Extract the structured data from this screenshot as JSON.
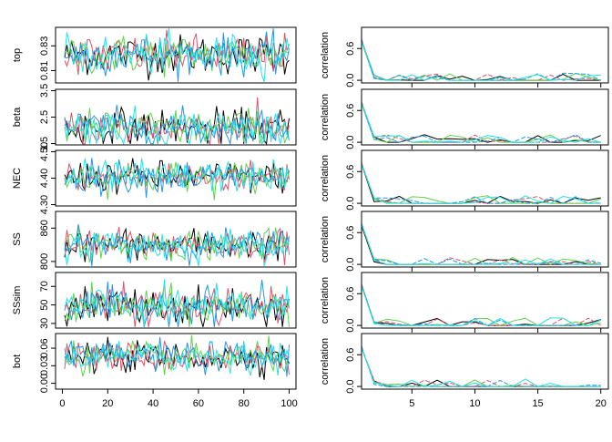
{
  "chart_data": {
    "type": "line",
    "parameters": [
      {
        "name": "top",
        "trace_ylim": [
          0.8,
          0.845
        ],
        "trace_yticks": [
          "0.81",
          "0.83"
        ],
        "trace_yticks_values": [
          0.81,
          0.83
        ],
        "trace_edge_ticks": [
          "0.81"
        ],
        "center": 0.823,
        "spread": 0.008
      },
      {
        "name": "beta",
        "trace_ylim": [
          1.45,
          3.55
        ],
        "trace_yticks": [
          "1.5",
          "2.5",
          "3.5"
        ],
        "trace_yticks_values": [
          1.5,
          2.5,
          3.5
        ],
        "center": 2.1,
        "spread": 0.35
      },
      {
        "name": "NEC",
        "trace_ylim": [
          4.295,
          4.505
        ],
        "trace_yticks": [
          "4.30",
          "4.40",
          "4.50"
        ],
        "trace_yticks_values": [
          4.3,
          4.4,
          4.5
        ],
        "center": 4.405,
        "spread": 0.03
      },
      {
        "name": "SS",
        "trace_ylim": [
          790,
          890
        ],
        "trace_yticks": [
          "800",
          "860"
        ],
        "trace_yticks_values": [
          800,
          860
        ],
        "center": 830,
        "spread": 14
      },
      {
        "name": "SSsim",
        "trace_ylim": [
          25,
          85
        ],
        "trace_yticks": [
          "30",
          "50",
          "70"
        ],
        "trace_yticks_values": [
          30,
          50,
          70
        ],
        "center": 48,
        "spread": 10
      },
      {
        "name": "bot",
        "trace_ylim": [
          -0.01,
          0.085
        ],
        "trace_yticks": [
          "0.00",
          "0.03",
          "0.06"
        ],
        "trace_yticks_values": [
          0.0,
          0.03,
          0.06
        ],
        "center": 0.045,
        "spread": 0.013
      }
    ],
    "trace_xlim": [
      -3,
      103
    ],
    "trace_xticks": [
      0,
      20,
      40,
      60,
      80,
      100
    ],
    "trace_xtick_labels": [
      "0",
      "20",
      "40",
      "60",
      "80",
      "100"
    ],
    "acf_xlim": [
      1,
      20.6
    ],
    "acf_xticks": [
      5,
      10,
      15,
      20
    ],
    "acf_xtick_labels": [
      "5",
      "10",
      "15",
      "20"
    ],
    "acf_ylim": [
      -0.05,
      1.0
    ],
    "acf_yticks": [
      0.0,
      0.6
    ],
    "acf_ytick_labels": [
      "0.0",
      "0.6"
    ],
    "acf_ylabel": "correlation",
    "chains": 5,
    "iterations": 100,
    "series_colors": [
      "#000000",
      "#DF536B",
      "#61D04F",
      "#2297E6",
      "#28E2E5"
    ],
    "grid": false,
    "legend": "none"
  }
}
